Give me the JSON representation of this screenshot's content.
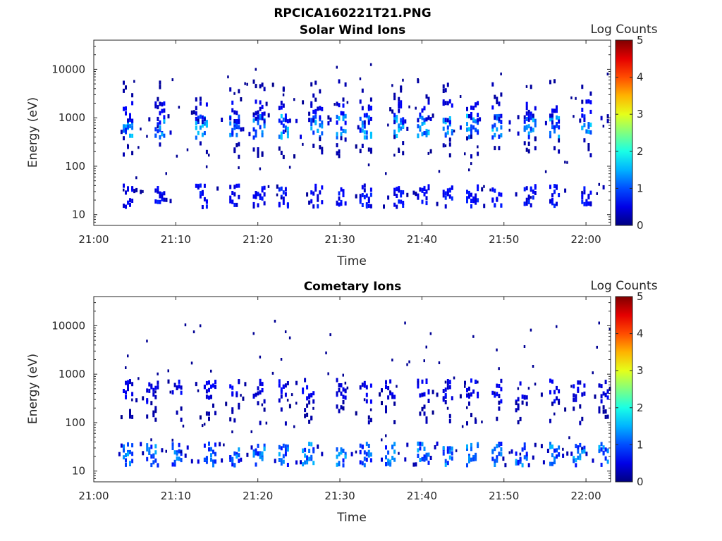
{
  "figure_title": "RPCICA160221T21.PNG",
  "colorbar": {
    "label": "Log Counts",
    "ticks": [
      "0",
      "1",
      "2",
      "3",
      "4",
      "5"
    ],
    "range": [
      0,
      5
    ],
    "colormap": "jet"
  },
  "chart_data": [
    {
      "type": "heatmap",
      "title": "Solar Wind Ions",
      "xlabel": "Time",
      "ylabel": "Energy (eV)",
      "yscale": "log",
      "ylim": [
        6,
        40000
      ],
      "xlim": [
        "21:00",
        "22:03"
      ],
      "xticks": [
        "21:00",
        "21:10",
        "21:20",
        "21:30",
        "21:40",
        "21:50",
        "22:00"
      ],
      "yticks": [
        "10",
        "100",
        "1000",
        "10000"
      ],
      "clim": [
        0,
        5
      ],
      "energy_bands": [
        {
          "energy": 24,
          "count_level": 0.6,
          "density": 0.45
        },
        {
          "energy": 650,
          "count_level": 1.2,
          "density": 0.55
        },
        {
          "energy": 1300,
          "count_level": 0.5,
          "density": 0.3
        },
        {
          "energy": 250,
          "count_level": 0.2,
          "density": 0.12
        },
        {
          "energy": 3500,
          "count_level": 0.2,
          "density": 0.08
        }
      ],
      "burst_times": [
        "21:04",
        "21:08",
        "21:13",
        "21:17",
        "21:20",
        "21:23",
        "21:27",
        "21:30",
        "21:33",
        "21:37",
        "21:40",
        "21:43",
        "21:46",
        "21:49",
        "21:53",
        "21:56",
        "22:00"
      ]
    },
    {
      "type": "heatmap",
      "title": "Cometary Ions",
      "xlabel": "Time",
      "ylabel": "Energy (eV)",
      "yscale": "log",
      "ylim": [
        6,
        40000
      ],
      "xlim": [
        "21:00",
        "22:03"
      ],
      "xticks": [
        "21:00",
        "21:10",
        "21:20",
        "21:30",
        "21:40",
        "21:50",
        "22:00"
      ],
      "yticks": [
        "10",
        "100",
        "1000",
        "10000"
      ],
      "clim": [
        0,
        5
      ],
      "energy_bands": [
        {
          "energy": 22,
          "count_level": 1.1,
          "density": 0.8
        },
        {
          "energy": 450,
          "count_level": 0.5,
          "density": 0.35
        },
        {
          "energy": 160,
          "count_level": 0.2,
          "density": 0.15
        }
      ],
      "burst_times": [
        "21:04",
        "21:07",
        "21:10",
        "21:14",
        "21:17",
        "21:20",
        "21:23",
        "21:26",
        "21:30",
        "21:33",
        "21:36",
        "21:40",
        "21:43",
        "21:46",
        "21:49",
        "21:52",
        "21:56",
        "21:59",
        "22:02"
      ]
    }
  ]
}
